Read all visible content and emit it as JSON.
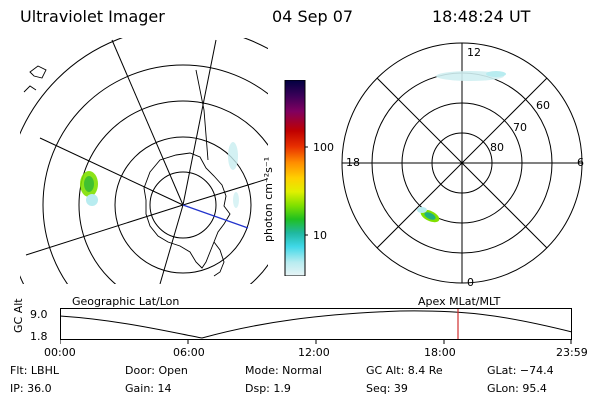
{
  "header": {
    "instrument": "Ultraviolet Imager",
    "date": "04 Sep 07",
    "time": "18:48:24 UT"
  },
  "colorbar": {
    "label": "photon cm⁻²s⁻¹",
    "ticks": [
      "100",
      "10"
    ],
    "colors": [
      "#000040",
      "#3a0058",
      "#800060",
      "#c00000",
      "#e83000",
      "#ff8c00",
      "#ffd000",
      "#e0f000",
      "#80e000",
      "#20c020",
      "#20b8a0",
      "#40d8e8",
      "#b8ecf0",
      "#e8f4f6"
    ]
  },
  "left_panel": {
    "label": "Geographic Lat/Lon"
  },
  "right_panel": {
    "label": "Apex MLat/MLT",
    "mlt_labels": {
      "top": "12",
      "left": "18",
      "right": "6",
      "bottom": "0"
    },
    "lat_labels": [
      "60",
      "70",
      "80"
    ]
  },
  "altitude_plot": {
    "ylabel": "GC Alt",
    "yticks": [
      "9.0",
      "1.8"
    ],
    "xticks": [
      "00:00",
      "06:00",
      "12:00",
      "18:00",
      "23:59"
    ],
    "marker_color": "#d03030"
  },
  "info": {
    "filter": "Flt: LBHL",
    "ip": "IP: 36.0",
    "door": "Door: Open",
    "gain": "Gain: 14",
    "mode": "Mode: Normal",
    "dsp": "Dsp:    1.9",
    "gc_alt": "GC Alt: 8.4 Re",
    "seq": "Seq: 39",
    "glat": "GLat: −74.4",
    "glon": "GLon:  95.4"
  }
}
